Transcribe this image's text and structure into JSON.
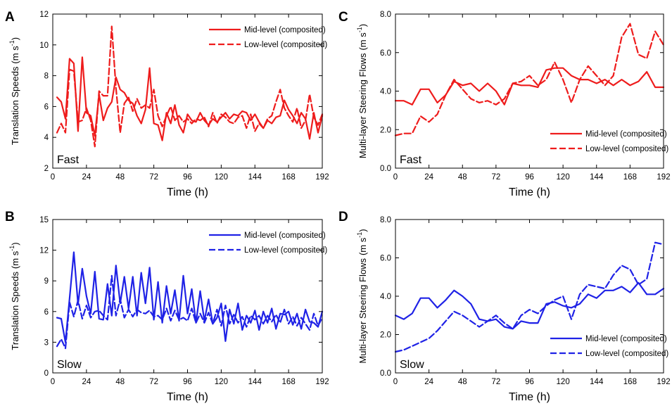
{
  "chart_data": [
    {
      "id": "A",
      "panel_label": "A",
      "type": "line",
      "tag": "Fast",
      "xlabel": "Time (h)",
      "ylabel": "Translation Speeds",
      "yunit": "(m s",
      "yunit_exp": "-1",
      "yunit_close": ")",
      "xlim": [
        0,
        192
      ],
      "ylim": [
        2,
        12
      ],
      "xticks": [
        0,
        24,
        48,
        72,
        96,
        120,
        144,
        168,
        192
      ],
      "yticks": [
        2,
        4,
        6,
        8,
        10,
        12
      ],
      "ytick_labels": [
        "2",
        "4",
        "6",
        "8",
        "10",
        "12"
      ],
      "legend_position": "top-right",
      "color": "#ee1c1c",
      "series": [
        {
          "name": "Mid-level (composited)",
          "style": "solid",
          "x": [
            3,
            6,
            9,
            12,
            15,
            18,
            21,
            24,
            27,
            30,
            33,
            36,
            39,
            42,
            45,
            48,
            51,
            54,
            57,
            60,
            63,
            66,
            69,
            72,
            75,
            78,
            81,
            84,
            87,
            90,
            93,
            96,
            99,
            102,
            105,
            108,
            111,
            114,
            117,
            120,
            123,
            126,
            129,
            132,
            135,
            138,
            141,
            144,
            147,
            150,
            153,
            156,
            159,
            162,
            165,
            168,
            171,
            174,
            177,
            180,
            183,
            186,
            189,
            192
          ],
          "y": [
            6.6,
            6.3,
            5.2,
            9.1,
            8.8,
            4.4,
            9.2,
            5.6,
            5.4,
            4.1,
            6.8,
            5.1,
            5.9,
            6.3,
            7.9,
            7.1,
            6.9,
            6.4,
            6.2,
            5.4,
            4.9,
            5.8,
            8.5,
            4.9,
            4.8,
            3.8,
            5.6,
            4.9,
            6.1,
            4.8,
            4.3,
            5.5,
            5.1,
            5.0,
            5.6,
            5.1,
            4.8,
            5.2,
            5.0,
            5.3,
            5.6,
            5.2,
            5.5,
            5.4,
            5.7,
            5.6,
            5.1,
            5.5,
            5.0,
            4.6,
            5.1,
            4.9,
            5.3,
            5.4,
            6.4,
            5.8,
            5.4,
            4.9,
            5.6,
            5.2,
            3.9,
            5.6,
            4.3,
            5.4
          ]
        },
        {
          "name": "Low-level (composited)",
          "style": "dashed",
          "x": [
            3,
            6,
            9,
            12,
            15,
            18,
            21,
            24,
            27,
            30,
            33,
            36,
            39,
            42,
            45,
            48,
            51,
            54,
            57,
            60,
            63,
            66,
            69,
            72,
            75,
            78,
            81,
            84,
            87,
            90,
            93,
            96,
            99,
            102,
            105,
            108,
            111,
            114,
            117,
            120,
            123,
            126,
            129,
            132,
            135,
            138,
            141,
            144,
            147,
            150,
            153,
            156,
            159,
            162,
            165,
            168,
            171,
            174,
            177,
            180,
            183,
            186,
            189,
            192
          ],
          "y": [
            4.3,
            4.9,
            4.3,
            8.4,
            8.3,
            5.0,
            5.1,
            5.9,
            5.1,
            3.4,
            7.0,
            6.7,
            6.7,
            11.2,
            7.2,
            4.3,
            6.2,
            6.6,
            5.7,
            6.5,
            5.9,
            6.1,
            5.9,
            7.1,
            5.4,
            4.7,
            5.4,
            6.0,
            5.1,
            5.4,
            5.0,
            5.2,
            4.9,
            5.2,
            5.1,
            5.3,
            4.7,
            5.6,
            4.9,
            5.5,
            5.3,
            5.0,
            4.9,
            5.3,
            5.4,
            4.6,
            5.5,
            4.4,
            4.9,
            4.6,
            5.2,
            5.4,
            6.3,
            7.1,
            5.9,
            5.4,
            5.0,
            5.9,
            4.6,
            5.1,
            6.8,
            5.3,
            4.8,
            5.5
          ]
        }
      ]
    },
    {
      "id": "B",
      "panel_label": "B",
      "type": "line",
      "tag": "Slow",
      "xlabel": "Time (h)",
      "ylabel": "Translation Speeds",
      "yunit": "(m s",
      "yunit_exp": "-1",
      "yunit_close": ")",
      "xlim": [
        0,
        192
      ],
      "ylim": [
        0,
        15
      ],
      "xticks": [
        0,
        24,
        48,
        72,
        96,
        120,
        144,
        168,
        192
      ],
      "yticks": [
        0,
        3,
        6,
        9,
        12,
        15
      ],
      "ytick_labels": [
        "0",
        "3",
        "6",
        "9",
        "12",
        "15"
      ],
      "legend_position": "top-right",
      "color": "#1f22e6",
      "series": [
        {
          "name": "Mid-level (composited)",
          "style": "solid",
          "x": [
            3,
            6,
            9,
            12,
            15,
            18,
            21,
            24,
            27,
            30,
            33,
            36,
            39,
            42,
            45,
            48,
            51,
            54,
            57,
            60,
            63,
            66,
            69,
            72,
            75,
            78,
            81,
            84,
            87,
            90,
            93,
            96,
            99,
            102,
            105,
            108,
            111,
            114,
            117,
            120,
            123,
            126,
            129,
            132,
            135,
            138,
            141,
            144,
            147,
            150,
            153,
            156,
            159,
            162,
            165,
            168,
            171,
            174,
            177,
            180,
            183,
            186,
            189,
            192
          ],
          "y": [
            5.4,
            5.3,
            3.0,
            7.3,
            11.8,
            6.7,
            10.2,
            7.5,
            5.8,
            9.9,
            5.3,
            5.2,
            8.7,
            5.6,
            10.5,
            6.8,
            9.4,
            6.3,
            9.4,
            5.6,
            9.8,
            6.8,
            10.3,
            5.2,
            8.9,
            4.9,
            8.5,
            5.8,
            8.1,
            5.1,
            9.5,
            5.8,
            8.2,
            4.9,
            8.0,
            5.1,
            7.2,
            4.8,
            5.4,
            6.8,
            3.1,
            6.2,
            4.8,
            6.8,
            4.2,
            5.6,
            4.9,
            6.1,
            4.2,
            6.0,
            4.9,
            6.3,
            4.3,
            5.8,
            5.7,
            6.0,
            4.7,
            5.8,
            4.3,
            6.2,
            5.0,
            4.9,
            4.5,
            6.0
          ]
        },
        {
          "name": "Low-level (composited)",
          "style": "dashed",
          "x": [
            3,
            6,
            9,
            12,
            15,
            18,
            21,
            24,
            27,
            30,
            33,
            36,
            39,
            42,
            45,
            48,
            51,
            54,
            57,
            60,
            63,
            66,
            69,
            72,
            75,
            78,
            81,
            84,
            87,
            90,
            93,
            96,
            99,
            102,
            105,
            108,
            111,
            114,
            117,
            120,
            123,
            126,
            129,
            132,
            135,
            138,
            141,
            144,
            147,
            150,
            153,
            156,
            159,
            162,
            165,
            168,
            171,
            174,
            177,
            180,
            183,
            186,
            189,
            192
          ],
          "y": [
            2.6,
            3.3,
            2.4,
            6.9,
            5.5,
            7.1,
            5.3,
            6.6,
            5.4,
            6.0,
            6.1,
            5.6,
            5.2,
            9.5,
            5.6,
            7.2,
            5.4,
            6.2,
            5.5,
            6.2,
            5.9,
            5.8,
            6.1,
            5.5,
            5.6,
            5.2,
            6.3,
            5.1,
            6.1,
            5.2,
            5.4,
            5.1,
            6.3,
            4.9,
            5.8,
            4.9,
            5.9,
            4.8,
            6.2,
            4.6,
            6.6,
            4.8,
            5.7,
            4.9,
            5.5,
            4.5,
            5.6,
            5.2,
            5.6,
            4.8,
            5.6,
            5.0,
            5.7,
            4.9,
            6.2,
            4.8,
            5.5,
            4.6,
            5.4,
            4.8,
            4.2,
            5.8,
            4.6,
            5.4
          ]
        }
      ]
    },
    {
      "id": "C",
      "panel_label": "C",
      "type": "line",
      "tag": "Fast",
      "xlabel": "Time (h)",
      "ylabel": "Multi-layer Steering Flows",
      "yunit": "(m s",
      "yunit_exp": "-1",
      "yunit_close": ")",
      "xlim": [
        0,
        192
      ],
      "ylim": [
        0,
        8
      ],
      "xticks": [
        0,
        24,
        48,
        72,
        96,
        120,
        144,
        168,
        192
      ],
      "yticks": [
        0,
        2,
        4,
        6,
        8
      ],
      "ytick_labels": [
        "0.0",
        "2.0",
        "4.0",
        "6.0",
        "8.0"
      ],
      "legend_position": "bottom-right",
      "color": "#ee1c1c",
      "series": [
        {
          "name": "Mid-level (composited)",
          "style": "solid",
          "x": [
            0,
            6,
            12,
            18,
            24,
            30,
            36,
            42,
            48,
            54,
            60,
            66,
            72,
            78,
            84,
            90,
            96,
            102,
            108,
            114,
            120,
            126,
            132,
            138,
            144,
            150,
            156,
            162,
            168,
            174,
            180,
            186,
            192
          ],
          "y": [
            3.5,
            3.5,
            3.3,
            4.1,
            4.1,
            3.4,
            3.8,
            4.5,
            4.3,
            4.4,
            4.0,
            4.4,
            4.0,
            3.3,
            4.4,
            4.3,
            4.3,
            4.2,
            5.1,
            5.2,
            5.2,
            4.8,
            4.6,
            4.6,
            4.4,
            4.6,
            4.3,
            4.6,
            4.3,
            4.5,
            5.0,
            4.2,
            4.2
          ]
        },
        {
          "name": "Low-level (composited)",
          "style": "dashed",
          "x": [
            0,
            6,
            12,
            18,
            24,
            30,
            36,
            42,
            48,
            54,
            60,
            66,
            72,
            78,
            84,
            90,
            96,
            102,
            108,
            114,
            120,
            126,
            132,
            138,
            144,
            150,
            156,
            162,
            168,
            174,
            180,
            186,
            192
          ],
          "y": [
            1.7,
            1.8,
            1.8,
            2.7,
            2.4,
            2.8,
            3.8,
            4.6,
            4.1,
            3.6,
            3.4,
            3.5,
            3.3,
            3.6,
            4.4,
            4.5,
            4.8,
            4.3,
            4.6,
            5.5,
            4.6,
            3.4,
            4.6,
            5.3,
            4.8,
            4.3,
            4.8,
            6.8,
            7.5,
            5.9,
            5.7,
            7.1,
            6.4
          ]
        }
      ]
    },
    {
      "id": "D",
      "panel_label": "D",
      "type": "line",
      "tag": "Slow",
      "xlabel": "Time (h)",
      "ylabel": "Multi-layer Steering Flows",
      "yunit": "(m s",
      "yunit_exp": "-1",
      "yunit_close": ")",
      "xlim": [
        0,
        192
      ],
      "ylim": [
        0,
        8
      ],
      "xticks": [
        0,
        24,
        48,
        72,
        96,
        120,
        144,
        168,
        192
      ],
      "yticks": [
        0,
        2,
        4,
        6,
        8
      ],
      "ytick_labels": [
        "0.0",
        "2.0",
        "4.0",
        "6.0",
        "8.0"
      ],
      "legend_position": "bottom-right",
      "color": "#1f22e6",
      "series": [
        {
          "name": "Mid-level (composited)",
          "style": "solid",
          "x": [
            0,
            6,
            12,
            18,
            24,
            30,
            36,
            42,
            48,
            54,
            60,
            66,
            72,
            78,
            84,
            90,
            96,
            102,
            108,
            114,
            120,
            126,
            132,
            138,
            144,
            150,
            156,
            162,
            168,
            174,
            180,
            186,
            192
          ],
          "y": [
            3.0,
            2.8,
            3.1,
            3.9,
            3.9,
            3.4,
            3.8,
            4.3,
            4.0,
            3.6,
            2.8,
            2.7,
            2.8,
            2.4,
            2.3,
            2.7,
            2.6,
            2.6,
            3.6,
            3.7,
            3.5,
            3.4,
            3.6,
            4.1,
            3.9,
            4.3,
            4.3,
            4.5,
            4.2,
            4.7,
            4.1,
            4.1,
            4.4
          ]
        },
        {
          "name": "Low-level (composited)",
          "style": "dashed",
          "x": [
            0,
            6,
            12,
            18,
            24,
            30,
            36,
            42,
            48,
            54,
            60,
            66,
            72,
            78,
            84,
            90,
            96,
            102,
            108,
            114,
            120,
            126,
            132,
            138,
            144,
            150,
            156,
            162,
            168,
            174,
            180,
            186,
            192
          ],
          "y": [
            1.1,
            1.2,
            1.4,
            1.6,
            1.8,
            2.2,
            2.7,
            3.2,
            3.0,
            2.7,
            2.4,
            2.7,
            3.0,
            2.6,
            2.3,
            3.0,
            3.3,
            3.1,
            3.5,
            3.8,
            4.0,
            2.8,
            4.1,
            4.6,
            4.5,
            4.4,
            5.1,
            5.6,
            5.4,
            4.6,
            4.9,
            6.8,
            6.7
          ]
        }
      ]
    }
  ]
}
